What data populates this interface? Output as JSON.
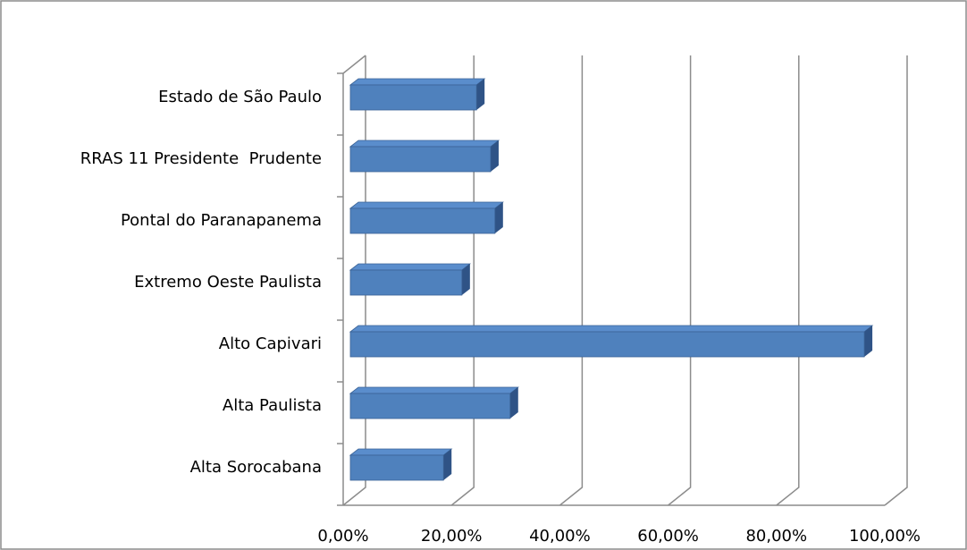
{
  "chart_data": {
    "type": "bar",
    "orientation": "horizontal",
    "categories": [
      "Estado de São Paulo",
      "RRAS 11 Presidente  Prudente",
      "Pontal do Paranapanema",
      "Extremo Oeste Paulista",
      "Alto Capivari",
      "Alta Paulista",
      "Alta Sorocabana"
    ],
    "values": [
      23.3,
      25.9,
      26.7,
      20.6,
      94.9,
      29.5,
      17.2
    ],
    "color": "#4f81bd",
    "xlim": [
      0,
      100
    ],
    "xticks": [
      {
        "value": 0,
        "label": "0,00%"
      },
      {
        "value": 20,
        "label": "20,00%"
      },
      {
        "value": 40,
        "label": "40,00%"
      },
      {
        "value": 60,
        "label": "60,00%"
      },
      {
        "value": 80,
        "label": "80,00%"
      },
      {
        "value": 100,
        "label": "100,00%"
      }
    ],
    "grid": true
  }
}
